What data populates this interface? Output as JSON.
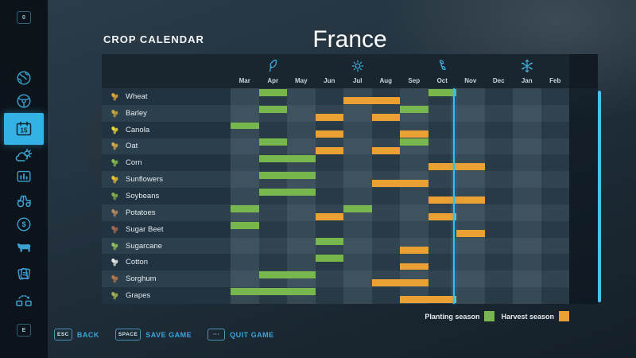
{
  "colors": {
    "accent": "#35b2e5",
    "planting": "#78b74e",
    "harvest": "#eba033",
    "header_strip": "#19262f",
    "row_dark": "#283a46",
    "row_light": "#31444f",
    "col_lighten": "rgba(186,220,236,0.10)",
    "label_dark": "#213340",
    "label_light": "#2b3f4c"
  },
  "sidebar": {
    "top_key": "0",
    "bottom_key": "E",
    "items": [
      {
        "name": "map-icon",
        "icon": "map",
        "active": false
      },
      {
        "name": "vehicles-icon",
        "icon": "wheel",
        "active": false
      },
      {
        "name": "calendar-icon",
        "icon": "calendar",
        "active": true,
        "day": "15"
      },
      {
        "name": "weather-icon",
        "icon": "weather",
        "active": false
      },
      {
        "name": "prices-icon",
        "icon": "prices",
        "active": false
      },
      {
        "name": "garage-icon",
        "icon": "tractor",
        "active": false
      },
      {
        "name": "finances-icon",
        "icon": "dollar",
        "active": false
      },
      {
        "name": "animals-icon",
        "icon": "cow",
        "active": false
      },
      {
        "name": "contracts-icon",
        "icon": "cards",
        "active": false
      },
      {
        "name": "production-icon",
        "icon": "production",
        "active": false
      }
    ]
  },
  "header": {
    "panel_title": "CROP CALENDAR",
    "map_title": "France"
  },
  "calendar": {
    "months": [
      "Mar",
      "Apr",
      "May",
      "Jun",
      "Jul",
      "Aug",
      "Sep",
      "Oct",
      "Nov",
      "Dec",
      "Jan",
      "Feb"
    ],
    "seasons": [
      {
        "name": "spring",
        "icon": "leaf-icon",
        "month_index": 1
      },
      {
        "name": "summer",
        "icon": "sun-icon",
        "month_index": 4
      },
      {
        "name": "autumn",
        "icon": "falling-leaves-icon",
        "month_index": 7
      },
      {
        "name": "winter",
        "icon": "snowflake-icon",
        "month_index": 10
      }
    ],
    "current_day_line": {
      "month_index": 7,
      "fraction": 0.88
    },
    "crops": [
      {
        "name": "Wheat",
        "icon_color": "#d9a437",
        "plant": [
          1,
          7
        ],
        "harvest": [
          4,
          5
        ]
      },
      {
        "name": "Barley",
        "icon_color": "#c8a43c",
        "plant": [
          1,
          6
        ],
        "harvest": [
          3,
          5
        ]
      },
      {
        "name": "Canola",
        "icon_color": "#e6d337",
        "plant": [
          0
        ],
        "harvest": [
          3,
          6
        ]
      },
      {
        "name": "Oat",
        "icon_color": "#d3a94a",
        "plant": [
          1,
          6
        ],
        "harvest": [
          3,
          5
        ]
      },
      {
        "name": "Corn",
        "icon_color": "#86b84b",
        "plant": [
          1,
          2
        ],
        "harvest": [
          7,
          8
        ]
      },
      {
        "name": "Sunflowers",
        "icon_color": "#e8c02f",
        "plant": [
          1,
          2
        ],
        "harvest": [
          5,
          6
        ]
      },
      {
        "name": "Soybeans",
        "icon_color": "#7fae4d",
        "plant": [
          1,
          2
        ],
        "harvest": [
          7,
          8
        ]
      },
      {
        "name": "Potatoes",
        "icon_color": "#b3895f",
        "plant": [
          0,
          4
        ],
        "harvest": [
          3,
          7
        ]
      },
      {
        "name": "Sugar Beet",
        "icon_color": "#a56a50",
        "plant": [
          0
        ],
        "harvest": [
          8
        ]
      },
      {
        "name": "Sugarcane",
        "icon_color": "#8fbf5a",
        "plant": [
          3
        ],
        "harvest": [
          6
        ]
      },
      {
        "name": "Cotton",
        "icon_color": "#e5e8e2",
        "plant": [
          3
        ],
        "harvest": [
          6
        ]
      },
      {
        "name": "Sorghum",
        "icon_color": "#b5764a",
        "plant": [
          1,
          2
        ],
        "harvest": [
          5,
          6
        ]
      },
      {
        "name": "Grapes",
        "icon_color": "#a3b04e",
        "plant": [
          0,
          1,
          2
        ],
        "harvest": [
          6,
          7
        ]
      }
    ],
    "legend": [
      {
        "label": "Planting season",
        "color": "#78b74e"
      },
      {
        "label": "Harvest season",
        "color": "#eba033"
      }
    ]
  },
  "footer": {
    "buttons": [
      {
        "key": "ESC",
        "label": "BACK"
      },
      {
        "key": "SPACE",
        "label": "SAVE GAME"
      },
      {
        "key": "···",
        "label": "QUIT GAME"
      }
    ]
  }
}
